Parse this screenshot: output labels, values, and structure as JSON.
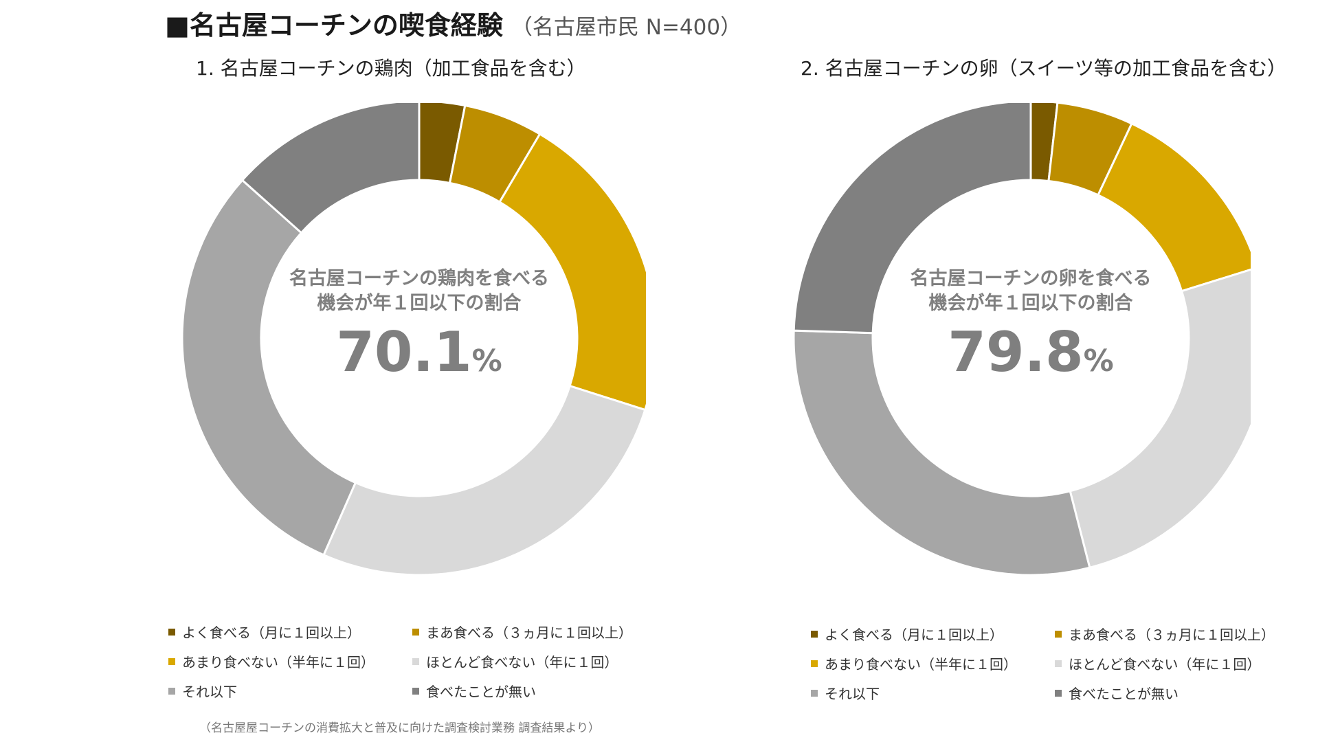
{
  "title": {
    "main": "■名古屋コーチンの喫食経験",
    "sub": "（名古屋市民 N=400）"
  },
  "source_note": "（名古屋屋コーチンの消費拡大と普及に向けた調査検討業務 調査結果より）",
  "chart_data": [
    {
      "type": "pie",
      "title": "1. 名古屋コーチンの鶏肉（加工食品を含む）",
      "center_label_line1": "名古屋コーチンの鶏肉を食べる",
      "center_label_line2": "機会が年１回以下の割合",
      "center_value": "70.1",
      "center_unit": "%",
      "categories": [
        "よく食べる（月に１回以上）",
        "まあ食べる（３ヵ月に１回以上）",
        "あまり食べない（半年に１回）",
        "ほとんど食べない（年に１回）",
        "それ以下",
        "食べたことが無い"
      ],
      "values": [
        3.1,
        5.4,
        21.4,
        26.7,
        30.0,
        13.4
      ],
      "colors": [
        "#7a5a00",
        "#bd8e00",
        "#d9a800",
        "#d9d9d9",
        "#a6a6a6",
        "#808080"
      ]
    },
    {
      "type": "pie",
      "title": "2. 名古屋コーチンの卵（スイーツ等の加工食品を含む）",
      "center_label_line1": "名古屋コーチンの卵を食べる",
      "center_label_line2": "機会が年１回以下の割合",
      "center_value": "79.8",
      "center_unit": "%",
      "categories": [
        "よく食べる（月に１回以上）",
        "まあ食べる（３ヵ月に１回以上）",
        "あまり食べない（半年に１回）",
        "ほとんど食べない（年に１回）",
        "それ以下",
        "食べたことが無い"
      ],
      "values": [
        1.8,
        5.2,
        13.2,
        25.8,
        29.5,
        24.5
      ],
      "colors": [
        "#7a5a00",
        "#bd8e00",
        "#d9a800",
        "#d9d9d9",
        "#a6a6a6",
        "#808080"
      ]
    }
  ]
}
